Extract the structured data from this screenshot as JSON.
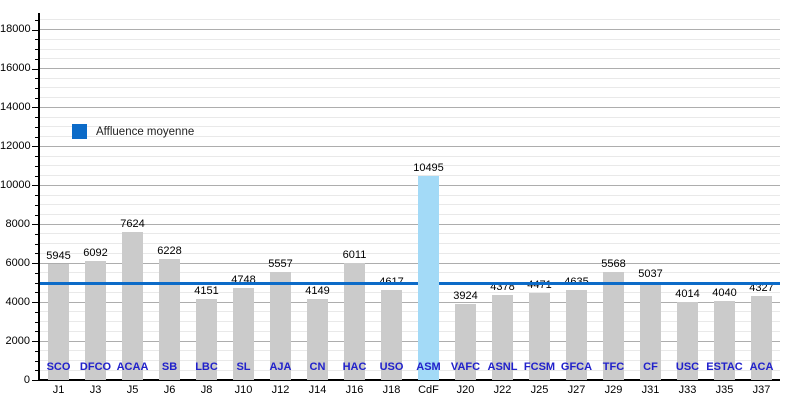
{
  "chart_data": {
    "type": "bar",
    "title": "",
    "legend_label": "Affluence moyenne",
    "legend_position": "inside-upper-left",
    "x_labels": [
      "J1",
      "J3",
      "J5",
      "J6",
      "J8",
      "J10",
      "J12",
      "J14",
      "J16",
      "J18",
      "CdF",
      "J20",
      "J22",
      "J25",
      "J27",
      "J29",
      "J31",
      "J33",
      "J35",
      "J37"
    ],
    "bar_labels": [
      "SCO",
      "DFCO",
      "ACAA",
      "SB",
      "LBC",
      "SL",
      "AJA",
      "CN",
      "HAC",
      "USO",
      "ASM",
      "VAFC",
      "ASNL",
      "FCSM",
      "GFCA",
      "TFC",
      "CF",
      "USC",
      "ESTAC",
      "ACA"
    ],
    "values": [
      5945,
      6092,
      7624,
      6228,
      4151,
      4748,
      5557,
      4149,
      6011,
      4617,
      10495,
      3924,
      4378,
      4471,
      4635,
      5568,
      5037,
      4014,
      4040,
      4327
    ],
    "highlighted_bar": {
      "index": 10,
      "x_label": "CdF",
      "bar_label": "ASM",
      "value": 10495
    },
    "average_line_value": 4978,
    "ylim": [
      0,
      18800
    ],
    "y_tick_labels": [
      "0",
      "2000",
      "4000",
      "6000",
      "8000",
      "10000",
      "12000",
      "14000",
      "16000",
      "18000"
    ],
    "y_major_step": 2000,
    "y_minor_step": 500,
    "grid": "horizontal-major-and-minor",
    "colors": {
      "bar_default": "#cbcbcb",
      "bar_highlight": "#a3daf7",
      "average_line": "#0c6bc8",
      "legend_swatch": "#0c6bc8",
      "bar_label_text": "#2121cb",
      "value_label_text": "#000000",
      "grid_major": "#adadad",
      "grid_minor": "#e9e9e9",
      "axis": "#000000"
    }
  }
}
